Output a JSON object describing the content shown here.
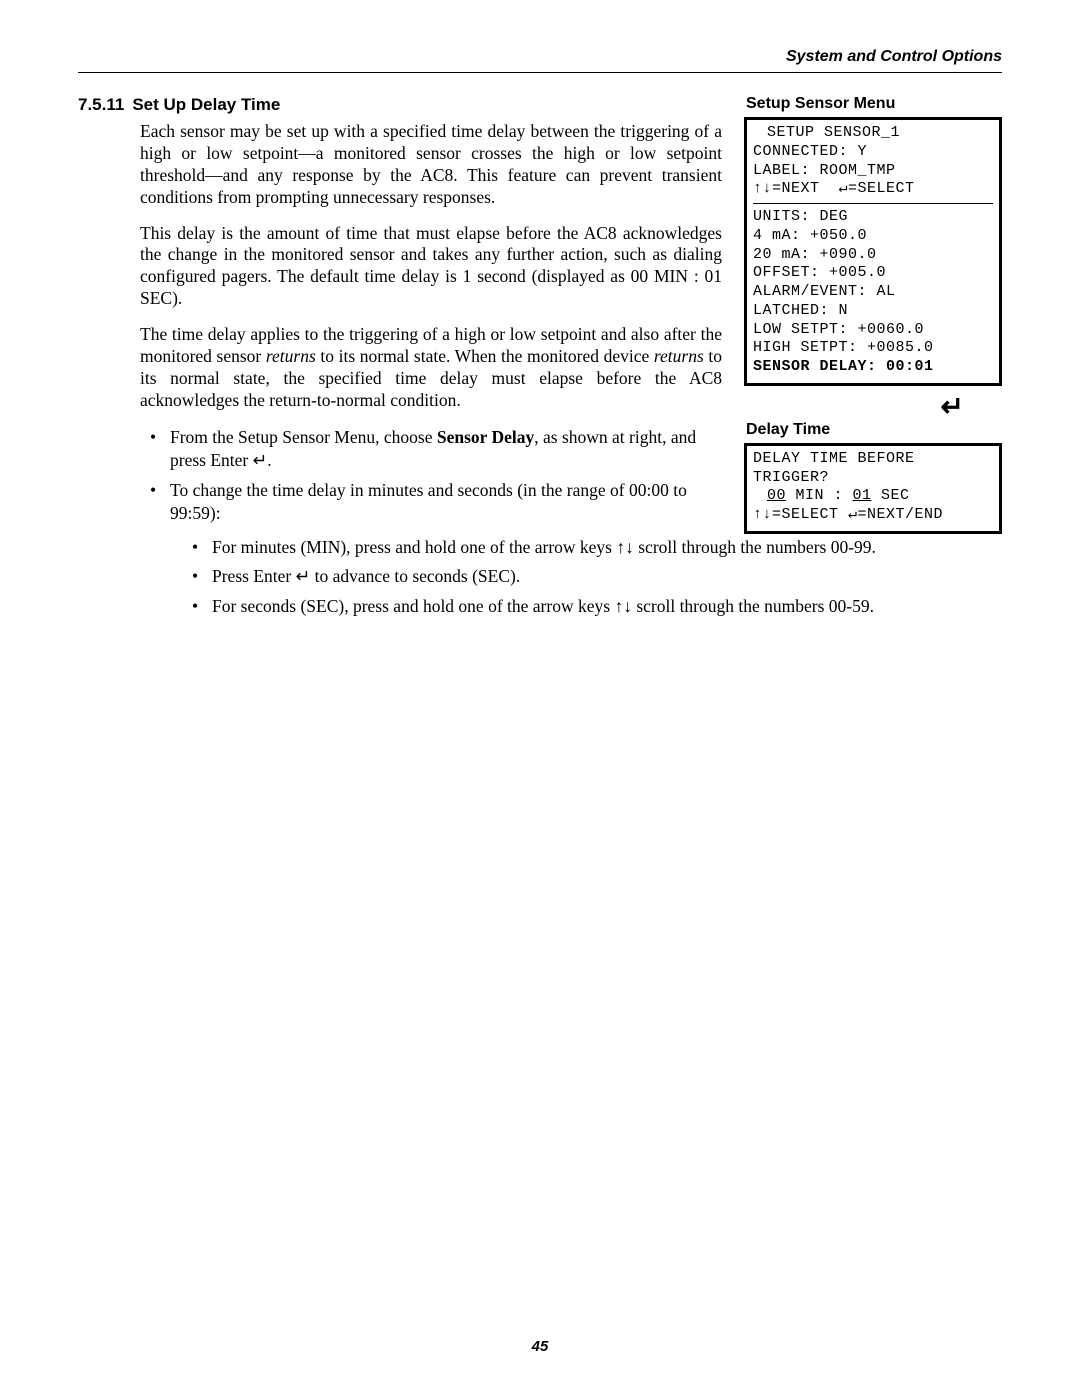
{
  "header": {
    "running": "System and Control Options"
  },
  "section": {
    "number": "7.5.11",
    "title": "Set Up Delay Time",
    "para1": "Each sensor may be set up with a specified time delay between the triggering of a high or low setpoint—a monitored sensor crosses the high or low setpoint threshold—and any response by the AC8. This feature can prevent transient conditions from prompting unnecessary responses.",
    "para2": "This delay is the amount of time that must elapse before the AC8 acknowledges the change in the monitored sensor and takes any further action, such as dialing configured pagers. The default time delay is 1 second (displayed as 00 MIN : 01 SEC).",
    "para3_a": "The time delay applies to the triggering of a high or low setpoint and also after the monitored sensor ",
    "para3_i1": "returns",
    "para3_b": " to its normal state. When the monitored device ",
    "para3_i2": "returns",
    "para3_c": " to its normal state, the specified time delay must elapse before the AC8 acknowledges the return-to-normal condition.",
    "bullets_left": {
      "b1_a": "From the Setup Sensor Menu, choose ",
      "b1_bold": "Sensor Delay",
      "b1_b": ", as shown at right, and press Enter ",
      "b1_c": ".",
      "b2": "To change the time delay in minutes and seconds (in the range of 00:00 to 99:59):"
    },
    "bullets_full": {
      "c1_a": "For minutes (MIN), press and hold one of the arrow keys ",
      "c1_b": " scroll through the numbers 00-99.",
      "c2_a": "Press Enter ",
      "c2_b": " to advance to seconds (SEC).",
      "c3_a": "For seconds (SEC), press and hold one of the arrow keys ",
      "c3_b": " scroll through the numbers 00-59."
    },
    "arrows_ud": "↑↓",
    "enter_sym": "↵"
  },
  "menu1": {
    "title": "Setup Sensor Menu",
    "l1": "SETUP SENSOR_1",
    "l2": "CONNECTED: Y",
    "l3": "LABEL: ROOM_TMP",
    "l4a": "↑↓=NEXT  ",
    "l4b": "↵=SELECT",
    "l5": "UNITS: DEG",
    "l6": "4 mA: +050.0",
    "l7": "20 mA: +090.0",
    "l8": "OFFSET: +005.0",
    "l9": "ALARM/EVENT: AL",
    "l10": "LATCHED: N",
    "l11": "LOW SETPT: +0060.0",
    "l12": "HIGH SETPT: +0085.0",
    "l13": "SENSOR DELAY: 00:01"
  },
  "menu2": {
    "title": "Delay Time",
    "enter_glyph": "↵",
    "l1": "DELAY TIME BEFORE",
    "l2": "TRIGGER?",
    "l3_min": "00",
    "l3_mid": " MIN : ",
    "l3_sec": "01",
    "l3_end": " SEC",
    "l4a": "↑↓=SELECT ",
    "l4b": "↵=NEXT/END"
  },
  "footer": {
    "page": "45"
  }
}
